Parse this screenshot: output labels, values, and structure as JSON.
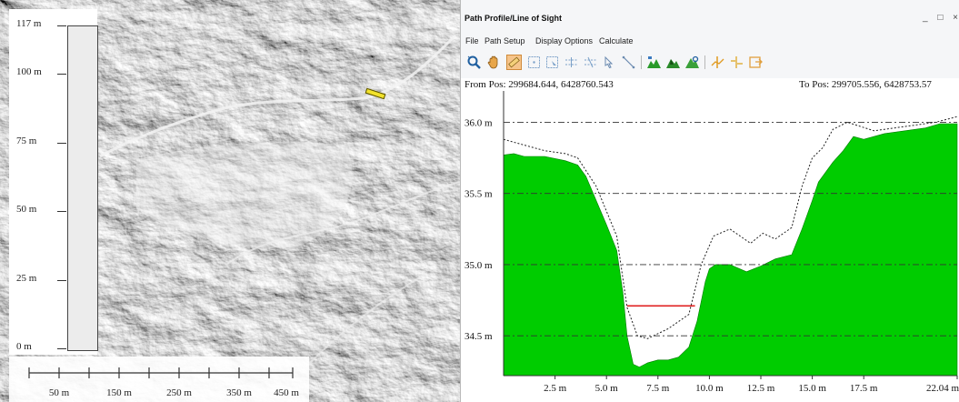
{
  "map": {
    "vertical_scale": {
      "labels": [
        "117 m",
        "100 m",
        "75 m",
        "50 m",
        "25 m",
        "0 m"
      ]
    },
    "horizontal_scale": {
      "labels": [
        "50 m",
        "150 m",
        "250 m",
        "350 m",
        "450 m"
      ]
    },
    "profile_line_color": "#f2e22a"
  },
  "window": {
    "title": "Path Profile/Line of Sight",
    "controls": {
      "minimize": "_",
      "maximize": "□",
      "close": "×"
    },
    "menu": [
      "File",
      "Path Setup",
      "Display Options",
      "Calculate"
    ],
    "toolbar_icons": [
      "zoom-in-icon",
      "pan-hand-icon",
      "ruler-icon",
      "grid-icon",
      "grid-select-icon",
      "dashed-line-icon",
      "dashed-line-alt-icon",
      "pointer-icon",
      "measure-line-icon",
      "terrain-green-icon",
      "terrain-shade-icon",
      "terrain-peak-icon",
      "profile-split-icon",
      "profile-split-alt-icon",
      "profile-export-icon"
    ],
    "from_pos": "From Pos: 299684.644, 6428760.543",
    "to_pos": "To Pos: 299705.556, 6428753.57"
  },
  "chart_data": {
    "type": "area",
    "title": "",
    "xlabel": "",
    "ylabel": "",
    "x_ticks": [
      "2.5 m",
      "5.0 m",
      "7.5 m",
      "10.0 m",
      "12.5 m",
      "15.0 m",
      "17.5 m",
      "22.04 m"
    ],
    "x_tick_values": [
      2.5,
      5.0,
      7.5,
      10.0,
      12.5,
      15.0,
      17.5,
      22.04
    ],
    "y_ticks": [
      "36.0 m",
      "35.5 m",
      "35.0 m",
      "34.5 m"
    ],
    "y_tick_values": [
      36.0,
      35.5,
      35.0,
      34.5
    ],
    "xlim": [
      0,
      22.04
    ],
    "ylim": [
      34.22,
      36.22
    ],
    "grid": "horizontal dash-dot",
    "fill_color": "#00cc00",
    "series": [
      {
        "style": "filled",
        "x": [
          0,
          0.5,
          1.0,
          2.0,
          3.0,
          3.6,
          4.0,
          4.5,
          5.0,
          5.5,
          5.8,
          6.0,
          6.3,
          6.6,
          7.0,
          7.5,
          8.0,
          8.5,
          9.0,
          9.4,
          9.8,
          10.0,
          10.3,
          11.0,
          11.8,
          12.5,
          13.2,
          14.0,
          14.5,
          15.0,
          15.3,
          16.0,
          16.5,
          17.0,
          17.5,
          18.5,
          19.5,
          20.5,
          21.2,
          22.04
        ],
        "y": [
          35.77,
          35.78,
          35.76,
          35.76,
          35.73,
          35.7,
          35.62,
          35.45,
          35.28,
          35.1,
          34.8,
          34.5,
          34.3,
          34.28,
          34.31,
          34.33,
          34.33,
          34.35,
          34.42,
          34.6,
          34.88,
          34.97,
          35.0,
          35.0,
          34.95,
          34.99,
          35.04,
          35.07,
          35.25,
          35.45,
          35.58,
          35.72,
          35.8,
          35.9,
          35.88,
          35.92,
          35.94,
          35.96,
          35.99,
          35.99
        ]
      },
      {
        "style": "dotted",
        "x": [
          0,
          1.0,
          2.0,
          3.0,
          3.6,
          4.5,
          5.5,
          6.0,
          6.5,
          7.0,
          8.0,
          9.0,
          9.6,
          10.2,
          11.0,
          12.0,
          12.6,
          13.2,
          14.0,
          14.5,
          15.0,
          15.5,
          16.0,
          16.7,
          18.0,
          19.5,
          21.0,
          22.04
        ],
        "y": [
          35.88,
          35.84,
          35.8,
          35.78,
          35.75,
          35.55,
          35.2,
          34.7,
          34.5,
          34.48,
          34.55,
          34.65,
          35.0,
          35.2,
          35.25,
          35.15,
          35.22,
          35.18,
          35.26,
          35.55,
          35.75,
          35.82,
          35.95,
          36.0,
          35.94,
          35.97,
          36.0,
          36.04
        ]
      },
      {
        "style": "line",
        "color": "#e02020",
        "x": [
          6.0,
          9.3
        ],
        "y": [
          34.71,
          34.71
        ]
      }
    ]
  }
}
